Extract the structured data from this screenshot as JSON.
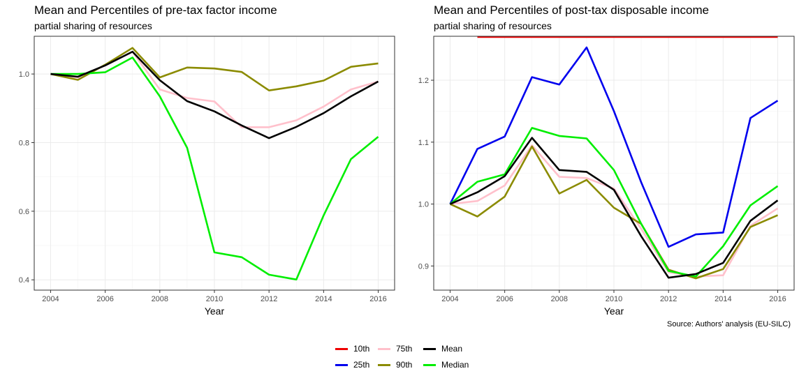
{
  "chart_data": [
    {
      "type": "line",
      "title": "Mean and Percentiles of pre-tax factor income",
      "subtitle": "partial sharing of resources",
      "xlabel": "Year",
      "ylabel": "",
      "xlim": [
        2003.4,
        2016.6
      ],
      "ylim": [
        0.37,
        1.11
      ],
      "xticks": [
        2004,
        2006,
        2008,
        2010,
        2012,
        2014,
        2016
      ],
      "yticks": [
        0.4,
        0.6,
        0.8,
        1.0
      ],
      "ytick_labels": [
        "0.4",
        "0.6",
        "0.8",
        "1.0"
      ],
      "grid": true,
      "x": [
        2004,
        2005,
        2006,
        2007,
        2008,
        2009,
        2010,
        2011,
        2012,
        2013,
        2014,
        2015,
        2016
      ],
      "series": [
        {
          "name": "75th",
          "color": "#FFC0CB",
          "values": [
            1.0,
            0.99,
            1.025,
            1.065,
            0.955,
            0.93,
            0.92,
            0.845,
            0.845,
            0.865,
            0.905,
            0.955,
            0.978
          ]
        },
        {
          "name": "90th",
          "color": "#8B8B00",
          "values": [
            1.0,
            0.983,
            1.027,
            1.076,
            0.99,
            1.019,
            1.016,
            1.006,
            0.952,
            0.964,
            0.981,
            1.021,
            1.031
          ]
        },
        {
          "name": "Median",
          "color": "#00EE00",
          "values": [
            1.0,
            1.0,
            1.005,
            1.048,
            0.935,
            0.785,
            0.48,
            0.466,
            0.415,
            0.401,
            0.588,
            0.752,
            0.817
          ]
        },
        {
          "name": "Mean",
          "color": "#000000",
          "values": [
            1.0,
            0.992,
            1.025,
            1.065,
            0.982,
            0.921,
            0.891,
            0.85,
            0.813,
            0.846,
            0.886,
            0.935,
            0.978
          ]
        }
      ]
    },
    {
      "type": "line",
      "title": "Mean and Percentiles of post-tax disposable income",
      "subtitle": "partial sharing of resources",
      "xlabel": "Year",
      "ylabel": "",
      "xlim": [
        2003.4,
        2016.6
      ],
      "ylim": [
        0.861,
        1.271
      ],
      "xticks": [
        2004,
        2006,
        2008,
        2010,
        2012,
        2014,
        2016
      ],
      "yticks": [
        0.9,
        1.0,
        1.1,
        1.2
      ],
      "ytick_labels": [
        "0.9",
        "1.0",
        "1.1",
        "1.2"
      ],
      "grid": true,
      "x": [
        2004,
        2005,
        2006,
        2007,
        2008,
        2009,
        2010,
        2011,
        2012,
        2013,
        2014,
        2015,
        2016
      ],
      "series": [
        {
          "name": "10th",
          "color": "#EE0000",
          "x": [
            2005,
            2016
          ],
          "values": [
            1.27,
            1.27
          ]
        },
        {
          "name": "25th",
          "color": "#0000EE",
          "values": [
            1.0,
            1.089,
            1.109,
            1.205,
            1.193,
            1.253,
            1.15,
            1.035,
            0.931,
            0.951,
            0.954,
            1.139,
            1.167
          ]
        },
        {
          "name": "75th",
          "color": "#FFC0CB",
          "values": [
            1.0,
            1.005,
            1.03,
            1.095,
            1.044,
            1.042,
            1.025,
            0.96,
            0.89,
            0.883,
            0.885,
            0.965,
            0.993
          ]
        },
        {
          "name": "90th",
          "color": "#8B8B00",
          "values": [
            1.0,
            0.98,
            1.012,
            1.093,
            1.017,
            1.039,
            0.994,
            0.968,
            0.894,
            0.88,
            0.895,
            0.963,
            0.982
          ]
        },
        {
          "name": "Median",
          "color": "#00EE00",
          "values": [
            1.0,
            1.036,
            1.048,
            1.123,
            1.11,
            1.106,
            1.055,
            0.968,
            0.892,
            0.883,
            0.932,
            0.998,
            1.029
          ]
        },
        {
          "name": "Mean",
          "color": "#000000",
          "values": [
            1.0,
            1.019,
            1.045,
            1.107,
            1.055,
            1.052,
            1.023,
            0.948,
            0.881,
            0.887,
            0.905,
            0.973,
            1.006
          ]
        }
      ]
    }
  ],
  "legend": {
    "items": [
      {
        "label": "10th",
        "color": "#EE0000"
      },
      {
        "label": "25th",
        "color": "#0000EE"
      },
      {
        "label": "75th",
        "color": "#FFC0CB"
      },
      {
        "label": "90th",
        "color": "#8B8B00"
      },
      {
        "label": "Mean",
        "color": "#000000"
      },
      {
        "label": "Median",
        "color": "#00EE00"
      }
    ]
  },
  "caption": "Source: Authors' analysis (EU-SILC)"
}
